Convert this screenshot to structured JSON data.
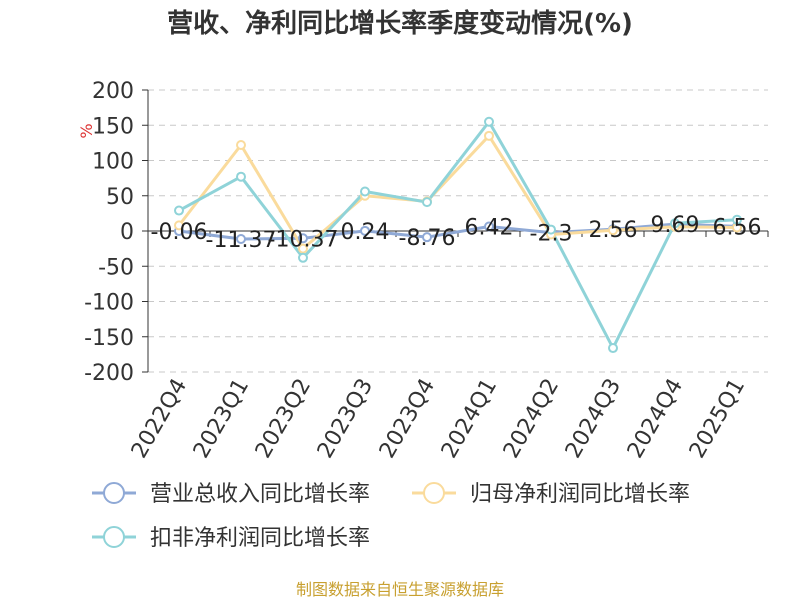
{
  "chart_data": {
    "type": "line",
    "title": "营收、净利同比增长率季度变动情况(%)",
    "ylabel": "%",
    "categories": [
      "2022Q4",
      "2023Q1",
      "2023Q2",
      "2023Q3",
      "2023Q4",
      "2024Q1",
      "2024Q2",
      "2024Q3",
      "2024Q4",
      "2025Q1"
    ],
    "yticks": [
      200,
      150,
      100,
      50,
      0,
      -50,
      -100,
      -150,
      -200
    ],
    "ylim": [
      -200,
      200
    ],
    "grid": true,
    "legend_position": "bottom",
    "series": [
      {
        "name": "营业总收入同比增长率",
        "color": "#8fa9d6",
        "values": [
          -0.06,
          -11.37,
          -10.37,
          0.24,
          -8.76,
          6.42,
          -2.3,
          2.56,
          9.69,
          6.56
        ],
        "labels": [
          "-0.06",
          "-11.37",
          "-10.37",
          "0.24",
          "-8.76",
          "6.42",
          "-2.3",
          "2.56",
          "9.69",
          "6.56"
        ]
      },
      {
        "name": "归母净利润同比增长率",
        "color": "#fadb9c",
        "values": [
          8,
          122,
          -25,
          50,
          42,
          135,
          -5,
          1,
          6,
          5
        ]
      },
      {
        "name": "扣非净利润同比增长率",
        "color": "#8fd3d8",
        "values": [
          29,
          77,
          -38,
          56,
          41,
          155,
          2,
          -166,
          11,
          16
        ]
      }
    ]
  },
  "footer": {
    "source": "制图数据来自恒生聚源数据库"
  }
}
